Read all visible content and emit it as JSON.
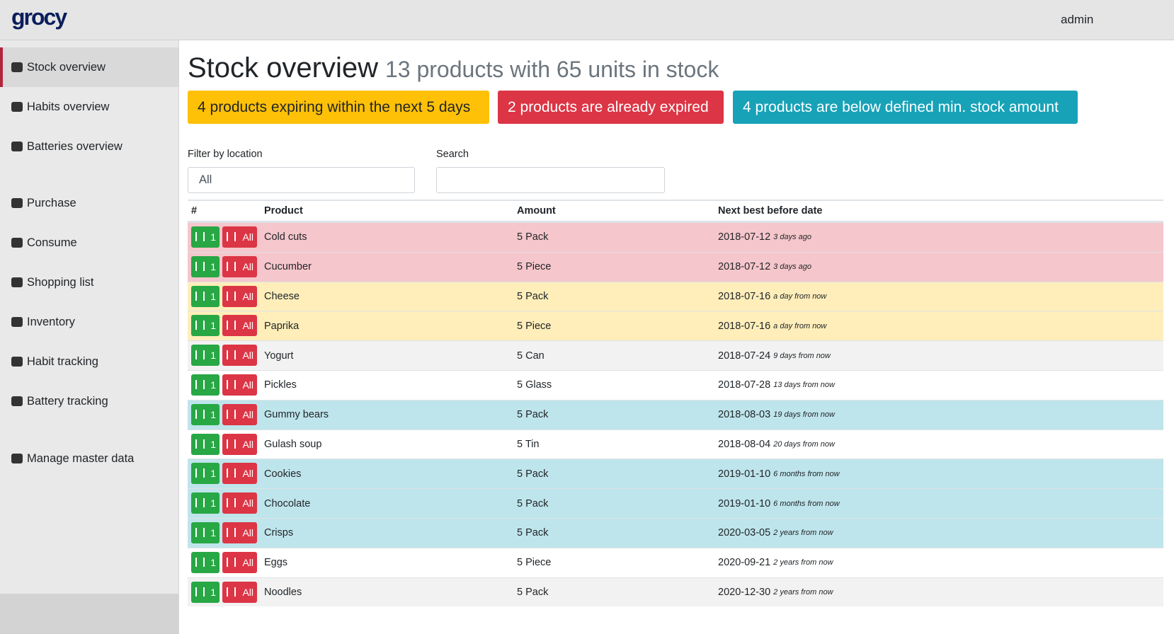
{
  "header": {
    "brand": "grocy",
    "user": "admin"
  },
  "nav": [
    {
      "label": "Stock overview",
      "active": true
    },
    {
      "label": "Habits overview"
    },
    {
      "label": "Batteries overview"
    },
    {
      "label": "Purchase"
    },
    {
      "label": "Consume"
    },
    {
      "label": "Shopping list"
    },
    {
      "label": "Inventory"
    },
    {
      "label": "Habit tracking"
    },
    {
      "label": "Battery tracking"
    },
    {
      "label": "Manage master data"
    }
  ],
  "page": {
    "title": "Stock overview",
    "subtitle": "13 products with 65 units in stock",
    "alerts": [
      {
        "text": "4 products expiring within the next 5 days",
        "color": "#ffc107",
        "text_color": "#212529"
      },
      {
        "text": "2 products are already expired",
        "color": "#dc3545",
        "text_color": "#ffffff"
      },
      {
        "text": "4 products are below defined min. stock amount",
        "color": "#17a2b8",
        "text_color": "#ffffff"
      }
    ],
    "filter_label": "Filter by location",
    "filter_value": "All",
    "search_label": "Search"
  },
  "table": {
    "headers": [
      "#",
      "Product",
      "Amount",
      "Next best before date"
    ],
    "buttons": [
      "1",
      "All"
    ],
    "rows": [
      {
        "product": "Cold cuts",
        "amount": "5 Pack",
        "date": "2018-07-12",
        "relative": "3 days ago",
        "color": "#f5c6cb"
      },
      {
        "product": "Cucumber",
        "amount": "5 Piece",
        "date": "2018-07-12",
        "relative": "3 days ago",
        "color": "#f5c6cb"
      },
      {
        "product": "Cheese",
        "amount": "5 Pack",
        "date": "2018-07-16",
        "relative": "a day from now",
        "color": "#ffeeba"
      },
      {
        "product": "Paprika",
        "amount": "5 Piece",
        "date": "2018-07-16",
        "relative": "a day from now",
        "color": "#ffeeba"
      },
      {
        "product": "Yogurt",
        "amount": "5 Can",
        "date": "2018-07-24",
        "relative": "9 days from now",
        "color": "#f2f2f2"
      },
      {
        "product": "Pickles",
        "amount": "5 Glass",
        "date": "2018-07-28",
        "relative": "13 days from now",
        "color": "#ffffff"
      },
      {
        "product": "Gummy bears",
        "amount": "5 Pack",
        "date": "2018-08-03",
        "relative": "19 days from now",
        "color": "#bee5eb"
      },
      {
        "product": "Gulash soup",
        "amount": "5 Tin",
        "date": "2018-08-04",
        "relative": "20 days from now",
        "color": "#ffffff"
      },
      {
        "product": "Cookies",
        "amount": "5 Pack",
        "date": "2019-01-10",
        "relative": "6 months from now",
        "color": "#bee5eb"
      },
      {
        "product": "Chocolate",
        "amount": "5 Pack",
        "date": "2019-01-10",
        "relative": "6 months from now",
        "color": "#bee5eb"
      },
      {
        "product": "Crisps",
        "amount": "5 Pack",
        "date": "2020-03-05",
        "relative": "2 years from now",
        "color": "#bee5eb"
      },
      {
        "product": "Eggs",
        "amount": "5 Piece",
        "date": "2020-09-21",
        "relative": "2 years from now",
        "color": "#ffffff"
      },
      {
        "product": "Noodles",
        "amount": "5 Pack",
        "date": "2020-12-30",
        "relative": "2 years from now",
        "color": "#f2f2f2"
      }
    ]
  }
}
